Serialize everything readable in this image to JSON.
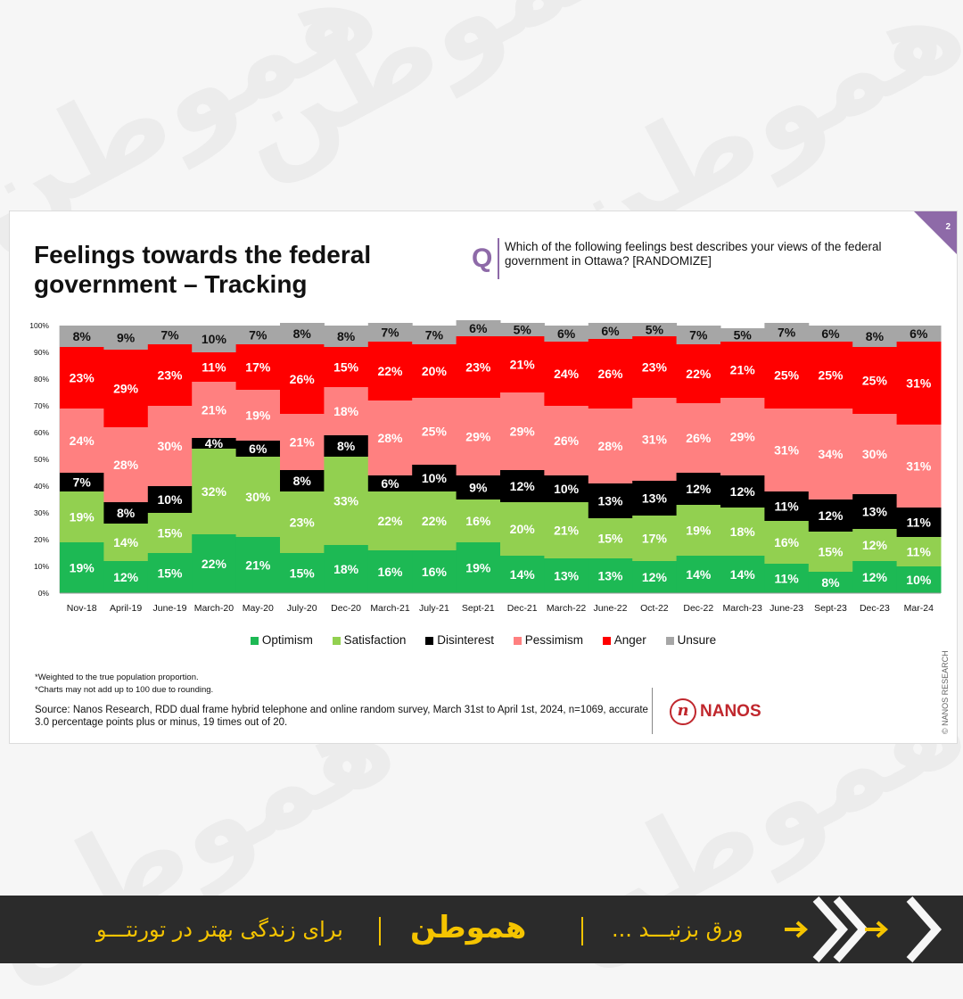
{
  "watermark": "هموطن",
  "slide": {
    "page_number": "2",
    "title": "Feelings towards the federal government – Tracking",
    "q_label": "Q",
    "question": "Which of the following feelings best describes your views of the federal government in Ottawa? [RANDOMIZE]",
    "footnotes": [
      "*Weighted to the true population proportion.",
      "*Charts may not add up to 100 due to rounding."
    ],
    "source": "Source: Nanos Research, RDD dual frame hybrid telephone and online random survey, March 31st to April 1st, 2024, n=1069, accurate 3.0 percentage points plus or minus, 19 times out of 20.",
    "logo_mark": "n",
    "logo_text": "NANOS",
    "copyright": "© NANOS RESEARCH"
  },
  "colors": {
    "Optimism": "#1db954",
    "Satisfaction": "#92d050",
    "Disinterest": "#000000",
    "Pessimism": "#ff8080",
    "Anger": "#ff0000",
    "Unsure": "#a6a6a6",
    "accent": "#8e6aa8",
    "banner": "#2b2b2b",
    "banner_text": "#f5c400"
  },
  "chart_data": {
    "type": "bar",
    "stacked": true,
    "categories": [
      "Nov-18",
      "April-19",
      "June-19",
      "March-20",
      "May-20",
      "July-20",
      "Dec-20",
      "March-21",
      "July-21",
      "Sept-21",
      "Dec-21",
      "March-22",
      "June-22",
      "Oct-22",
      "Dec-22",
      "March-23",
      "June-23",
      "Sept-23",
      "Dec-23",
      "Mar-24"
    ],
    "series": [
      {
        "name": "Optimism",
        "values": [
          19,
          12,
          15,
          22,
          21,
          15,
          18,
          16,
          16,
          19,
          14,
          13,
          13,
          12,
          14,
          14,
          11,
          8,
          12,
          10
        ]
      },
      {
        "name": "Satisfaction",
        "values": [
          19,
          14,
          15,
          32,
          30,
          23,
          33,
          22,
          22,
          16,
          20,
          21,
          15,
          17,
          19,
          18,
          16,
          15,
          12,
          11
        ]
      },
      {
        "name": "Disinterest",
        "values": [
          7,
          8,
          10,
          4,
          6,
          8,
          8,
          6,
          10,
          9,
          12,
          10,
          13,
          13,
          12,
          12,
          11,
          12,
          13,
          11
        ]
      },
      {
        "name": "Pessimism",
        "values": [
          24,
          28,
          30,
          21,
          19,
          21,
          18,
          28,
          25,
          29,
          29,
          26,
          28,
          31,
          26,
          29,
          31,
          34,
          30,
          31
        ]
      },
      {
        "name": "Anger",
        "values": [
          23,
          29,
          23,
          11,
          17,
          26,
          15,
          22,
          20,
          23,
          21,
          24,
          26,
          23,
          22,
          21,
          25,
          25,
          25,
          31
        ]
      },
      {
        "name": "Unsure",
        "values": [
          8,
          9,
          7,
          10,
          7,
          8,
          8,
          7,
          7,
          6,
          5,
          6,
          6,
          5,
          7,
          5,
          7,
          6,
          8,
          6
        ]
      }
    ],
    "ylim": [
      0,
      100
    ],
    "yticks": [
      "0%",
      "10%",
      "20%",
      "30%",
      "40%",
      "50%",
      "60%",
      "70%",
      "80%",
      "90%",
      "100%"
    ],
    "legend_position": "bottom",
    "data_label_suffix": "%"
  },
  "banner": {
    "right_text": "برای زندگی بهتر در تورنتـــو",
    "logo": "هموطن",
    "left_text": "... ورق بزنیـــد"
  }
}
